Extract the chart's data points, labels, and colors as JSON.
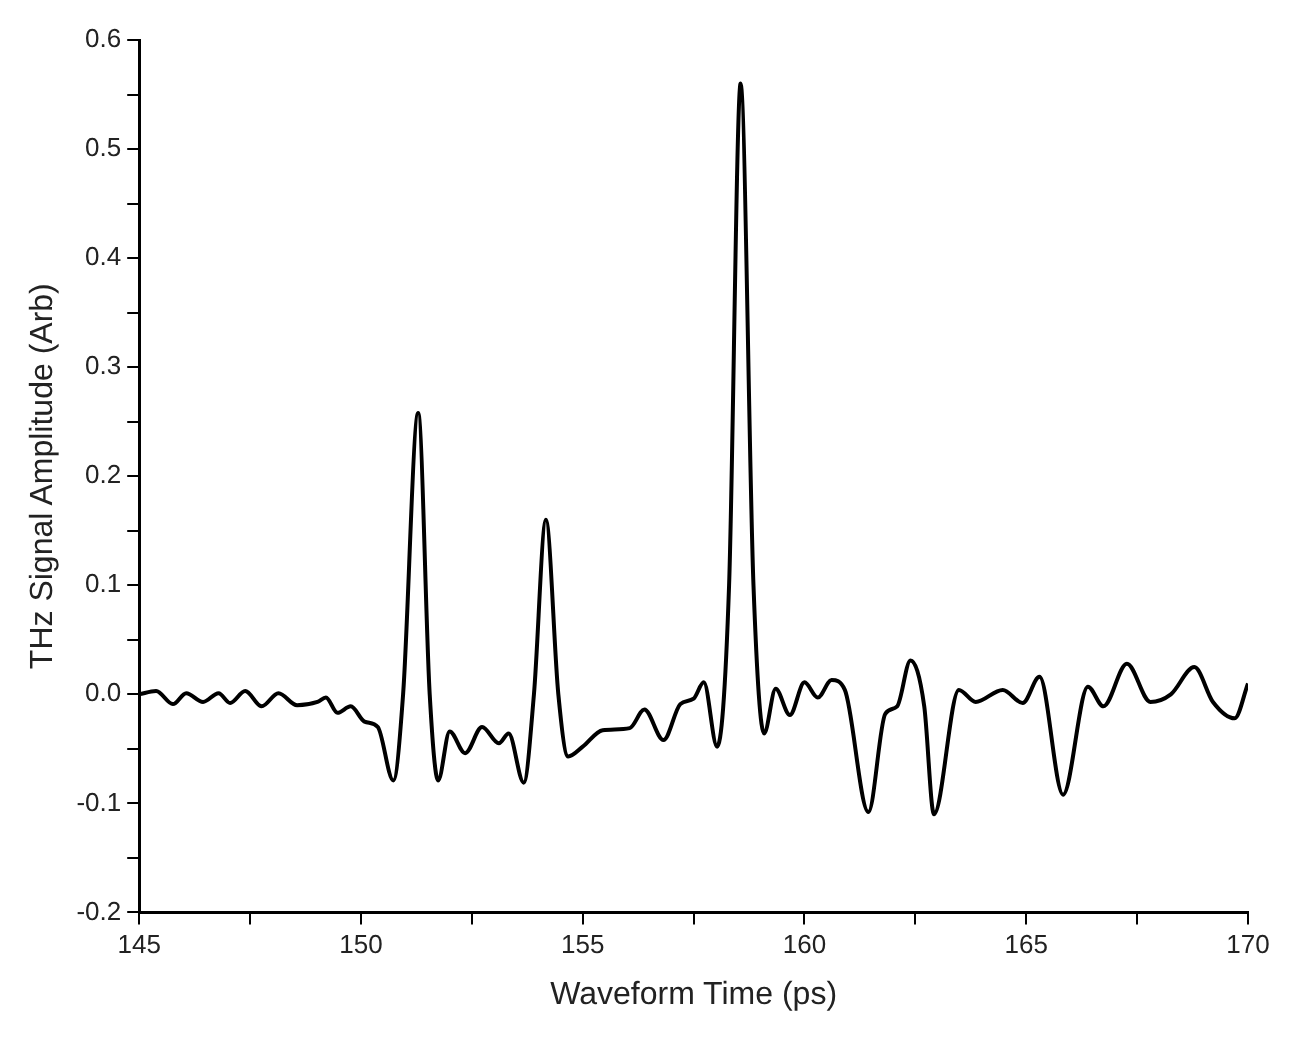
{
  "chart_data": {
    "type": "line",
    "xlabel": "Waveform Time (ps)",
    "ylabel": "THz Signal Amplitude (Arb)",
    "xlim": [
      145,
      170
    ],
    "ylim": [
      -0.2,
      0.6
    ],
    "xticks": [
      145,
      {
        "value": 147.5,
        "label": null
      },
      150,
      {
        "value": 152.5,
        "label": null
      },
      155,
      {
        "value": 157.5,
        "label": null
      },
      160,
      {
        "value": 162.5,
        "label": null
      },
      165,
      {
        "value": 167.5,
        "label": null
      },
      170
    ],
    "yticks": [
      {
        "value": -0.2,
        "label": "-0.2"
      },
      {
        "value": -0.15,
        "label": null
      },
      {
        "value": -0.1,
        "label": "-0.1"
      },
      {
        "value": -0.05,
        "label": null
      },
      {
        "value": 0,
        "label": "0.0"
      },
      {
        "value": 0.05,
        "label": null
      },
      {
        "value": 0.1,
        "label": "0.1"
      },
      {
        "value": 0.15,
        "label": null
      },
      {
        "value": 0.2,
        "label": "0.2"
      },
      {
        "value": 0.25,
        "label": null
      },
      {
        "value": 0.3,
        "label": "0.3"
      },
      {
        "value": 0.35,
        "label": null
      },
      {
        "value": 0.4,
        "label": "0.4"
      },
      {
        "value": 0.45,
        "label": null
      },
      {
        "value": 0.5,
        "label": "0.5"
      },
      {
        "value": 0.55,
        "label": null
      },
      {
        "value": 0.6,
        "label": "0.6"
      }
    ],
    "grid": false,
    "legend": false,
    "marker": "none",
    "line_style": "solid",
    "series": [
      {
        "color": "#000000",
        "x": [
          145.0,
          145.38,
          145.76,
          146.06,
          146.44,
          146.79,
          147.05,
          147.39,
          147.76,
          148.14,
          148.56,
          149.02,
          149.21,
          149.47,
          149.77,
          150.08,
          150.38,
          150.73,
          150.95,
          151.29,
          151.55,
          151.74,
          152.0,
          152.35,
          152.73,
          153.11,
          153.33,
          153.67,
          153.9,
          154.17,
          154.45,
          154.67,
          155.0,
          155.45,
          156.06,
          156.39,
          156.82,
          157.2,
          157.5,
          157.73,
          158.03,
          158.3,
          158.56,
          158.85,
          159.09,
          159.35,
          159.67,
          160.0,
          160.3,
          160.61,
          160.91,
          161.44,
          161.82,
          162.09,
          162.39,
          162.7,
          162.92,
          163.48,
          163.86,
          164.47,
          164.92,
          165.3,
          165.83,
          166.39,
          166.74,
          167.27,
          167.8,
          168.26,
          168.79,
          169.21,
          169.7,
          170.0
        ],
        "values": [
          0.0,
          0.003,
          -0.009,
          0.001,
          -0.007,
          0.001,
          -0.008,
          0.003,
          -0.011,
          0.001,
          -0.01,
          -0.007,
          -0.003,
          -0.017,
          -0.011,
          -0.025,
          -0.03,
          -0.079,
          0.0,
          0.258,
          0.0,
          -0.079,
          -0.034,
          -0.054,
          -0.03,
          -0.045,
          -0.036,
          -0.081,
          0.0,
          0.16,
          0.0,
          -0.057,
          -0.048,
          -0.033,
          -0.031,
          -0.014,
          -0.042,
          -0.009,
          -0.004,
          0.011,
          -0.048,
          0.1,
          0.56,
          0.1,
          -0.036,
          0.005,
          -0.019,
          0.011,
          -0.003,
          0.013,
          0.004,
          -0.108,
          -0.018,
          -0.011,
          0.031,
          -0.011,
          -0.11,
          0.004,
          -0.007,
          0.004,
          -0.008,
          0.016,
          -0.092,
          0.007,
          -0.011,
          0.028,
          -0.007,
          0.0,
          0.025,
          -0.007,
          -0.022,
          0.01
        ]
      }
    ]
  }
}
